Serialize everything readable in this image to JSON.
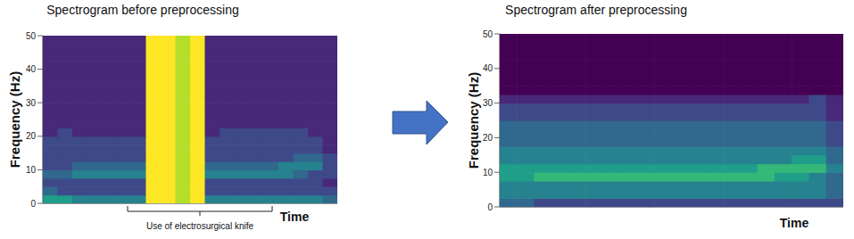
{
  "chart_data": [
    {
      "type": "heatmap",
      "title": "Spectrogram before preprocessing",
      "y_label": "Frequency (Hz)",
      "x_label": "Time",
      "annotation": "Use of electrosurgical knife",
      "tick_labels": "y",
      "ylim": [
        0,
        50
      ],
      "yticks": [
        0,
        10,
        20,
        30,
        40,
        50
      ],
      "y_bins": [
        0,
        2.5,
        5,
        7.5,
        10,
        12.5,
        15,
        17.5,
        20,
        22.5,
        25,
        27.5,
        30,
        32.5,
        35,
        37.5,
        40,
        42.5,
        45,
        47.5,
        50
      ],
      "cells": [
        [
          5,
          5,
          4,
          4,
          4,
          4,
          4,
          9,
          9,
          8,
          9,
          4,
          4,
          4,
          4,
          4,
          4,
          4,
          4,
          3
        ],
        [
          3,
          2,
          2,
          2,
          2,
          2,
          2,
          9,
          9,
          8,
          9,
          2,
          2,
          2,
          2,
          2,
          2,
          2,
          2,
          2
        ],
        [
          2,
          2,
          2,
          2,
          2,
          2,
          2,
          9,
          9,
          8,
          9,
          2,
          2,
          2,
          2,
          2,
          2,
          2,
          2,
          1
        ],
        [
          3,
          3,
          4,
          4,
          4,
          4,
          4,
          9,
          9,
          8,
          9,
          4,
          4,
          4,
          4,
          4,
          4,
          3,
          2,
          2
        ],
        [
          2,
          2,
          3,
          3,
          3,
          3,
          3,
          9,
          9,
          8,
          9,
          3,
          3,
          3,
          3,
          3,
          4,
          4,
          4,
          2
        ],
        [
          2,
          2,
          2,
          2,
          2,
          2,
          2,
          9,
          9,
          8,
          9,
          2,
          2,
          2,
          2,
          2,
          2,
          3,
          3,
          2
        ],
        [
          2,
          2,
          2,
          2,
          2,
          2,
          2,
          9,
          9,
          8,
          9,
          2,
          2,
          2,
          2,
          2,
          2,
          2,
          2,
          1
        ],
        [
          2,
          2,
          2,
          2,
          2,
          2,
          2,
          9,
          9,
          8,
          9,
          2,
          2,
          2,
          2,
          2,
          2,
          2,
          2,
          1
        ],
        [
          1,
          2,
          1,
          1,
          1,
          1,
          1,
          9,
          9,
          8,
          9,
          1,
          2,
          2,
          2,
          2,
          2,
          2,
          1,
          1
        ],
        [
          1,
          1,
          1,
          1,
          1,
          1,
          1,
          9,
          9,
          8,
          9,
          1,
          1,
          1,
          1,
          1,
          1,
          1,
          1,
          1
        ],
        [
          1,
          1,
          1,
          1,
          1,
          1,
          1,
          9,
          9,
          8,
          9,
          1,
          1,
          1,
          1,
          1,
          1,
          1,
          1,
          1
        ],
        [
          1,
          1,
          1,
          1,
          1,
          1,
          1,
          9,
          9,
          8,
          9,
          1,
          1,
          1,
          1,
          1,
          1,
          1,
          1,
          1
        ],
        [
          1,
          1,
          1,
          1,
          1,
          1,
          1,
          9,
          9,
          8,
          9,
          1,
          1,
          1,
          1,
          1,
          1,
          1,
          1,
          1
        ],
        [
          1,
          1,
          1,
          1,
          1,
          1,
          1,
          9,
          9,
          8,
          9,
          1,
          1,
          1,
          1,
          1,
          1,
          1,
          1,
          1
        ],
        [
          1,
          1,
          1,
          1,
          1,
          1,
          1,
          9,
          9,
          8,
          9,
          1,
          1,
          1,
          1,
          1,
          1,
          1,
          1,
          1
        ],
        [
          1,
          1,
          1,
          1,
          1,
          1,
          1,
          9,
          9,
          8,
          9,
          1,
          1,
          1,
          1,
          1,
          1,
          1,
          1,
          1
        ],
        [
          1,
          1,
          1,
          1,
          1,
          1,
          1,
          9,
          9,
          8,
          9,
          1,
          1,
          1,
          1,
          1,
          1,
          1,
          1,
          1
        ],
        [
          1,
          1,
          1,
          1,
          1,
          1,
          1,
          9,
          9,
          8,
          9,
          1,
          1,
          1,
          1,
          1,
          1,
          1,
          1,
          1
        ],
        [
          1,
          1,
          1,
          1,
          1,
          1,
          1,
          9,
          9,
          8,
          9,
          1,
          1,
          1,
          1,
          1,
          1,
          1,
          1,
          1
        ],
        [
          1,
          1,
          1,
          1,
          1,
          1,
          1,
          9,
          9,
          8,
          9,
          1,
          1,
          1,
          1,
          1,
          1,
          1,
          1,
          1
        ]
      ]
    },
    {
      "type": "heatmap",
      "title": "Spectrogram after preprocessing",
      "y_label": "Frequency (Hz)",
      "x_label": "Time",
      "tick_labels": "y",
      "ylim": [
        0,
        50
      ],
      "yticks": [
        0,
        10,
        20,
        30,
        40,
        50
      ],
      "y_bins": [
        0,
        2.5,
        5,
        7.5,
        10,
        12.5,
        15,
        17.5,
        20,
        22.5,
        25,
        27.5,
        30,
        32.5,
        35,
        37.5,
        40,
        42.5,
        45,
        47.5,
        50
      ],
      "cells": [
        [
          3,
          3,
          2,
          2,
          2,
          2,
          2,
          2,
          2,
          2,
          2,
          2,
          2,
          2,
          2,
          2,
          2,
          2,
          2,
          2
        ],
        [
          4,
          4,
          4,
          4,
          4,
          4,
          4,
          4,
          4,
          4,
          4,
          4,
          4,
          4,
          4,
          4,
          4,
          4,
          4,
          3
        ],
        [
          4,
          4,
          4,
          4,
          4,
          4,
          4,
          4,
          4,
          4,
          4,
          4,
          4,
          4,
          4,
          4,
          4,
          4,
          4,
          3
        ],
        [
          5,
          5,
          6,
          6,
          6,
          6,
          6,
          6,
          6,
          6,
          6,
          6,
          6,
          6,
          6,
          6,
          5,
          5,
          4,
          3
        ],
        [
          5,
          5,
          5,
          5,
          5,
          5,
          5,
          5,
          5,
          5,
          5,
          5,
          5,
          5,
          5,
          6,
          6,
          6,
          6,
          4
        ],
        [
          4,
          4,
          4,
          4,
          4,
          4,
          4,
          4,
          4,
          4,
          4,
          4,
          4,
          4,
          4,
          4,
          4,
          5,
          5,
          3
        ],
        [
          4,
          4,
          4,
          4,
          4,
          4,
          4,
          4,
          4,
          4,
          4,
          4,
          4,
          4,
          4,
          4,
          4,
          4,
          4,
          3
        ],
        [
          3,
          3,
          3,
          3,
          3,
          3,
          3,
          3,
          3,
          3,
          3,
          3,
          3,
          3,
          3,
          3,
          3,
          3,
          3,
          2
        ],
        [
          3,
          3,
          3,
          3,
          3,
          3,
          3,
          3,
          3,
          3,
          3,
          3,
          3,
          3,
          3,
          3,
          3,
          3,
          3,
          2
        ],
        [
          3,
          3,
          3,
          3,
          3,
          3,
          3,
          3,
          3,
          3,
          3,
          3,
          3,
          3,
          3,
          3,
          3,
          3,
          3,
          2
        ],
        [
          2,
          2,
          2,
          2,
          2,
          2,
          2,
          2,
          2,
          2,
          2,
          2,
          2,
          2,
          2,
          2,
          2,
          2,
          2,
          1
        ],
        [
          2,
          2,
          2,
          2,
          2,
          2,
          2,
          2,
          2,
          2,
          2,
          2,
          2,
          2,
          2,
          2,
          2,
          2,
          2,
          1
        ],
        [
          1,
          1,
          1,
          1,
          1,
          1,
          1,
          1,
          1,
          1,
          1,
          1,
          1,
          1,
          1,
          1,
          1,
          1,
          2,
          1
        ],
        [
          0,
          0,
          0,
          0,
          0,
          0,
          0,
          0,
          0,
          0,
          0,
          0,
          0,
          0,
          0,
          0,
          0,
          0,
          0,
          0
        ],
        [
          0,
          0,
          0,
          0,
          0,
          0,
          0,
          0,
          0,
          0,
          0,
          0,
          0,
          0,
          0,
          0,
          0,
          0,
          0,
          0
        ],
        [
          0,
          0,
          0,
          0,
          0,
          0,
          0,
          0,
          0,
          0,
          0,
          0,
          0,
          0,
          0,
          0,
          0,
          0,
          0,
          0
        ],
        [
          0,
          0,
          0,
          0,
          0,
          0,
          0,
          0,
          0,
          0,
          0,
          0,
          0,
          0,
          0,
          0,
          0,
          0,
          0,
          0
        ],
        [
          0,
          0,
          0,
          0,
          0,
          0,
          0,
          0,
          0,
          0,
          0,
          0,
          0,
          0,
          0,
          0,
          0,
          0,
          0,
          0
        ],
        [
          0,
          0,
          0,
          0,
          0,
          0,
          0,
          0,
          0,
          0,
          0,
          0,
          0,
          0,
          0,
          0,
          0,
          0,
          0,
          0
        ],
        [
          0,
          0,
          0,
          0,
          0,
          0,
          0,
          0,
          0,
          0,
          0,
          0,
          0,
          0,
          0,
          0,
          0,
          0,
          0,
          0
        ]
      ]
    }
  ]
}
